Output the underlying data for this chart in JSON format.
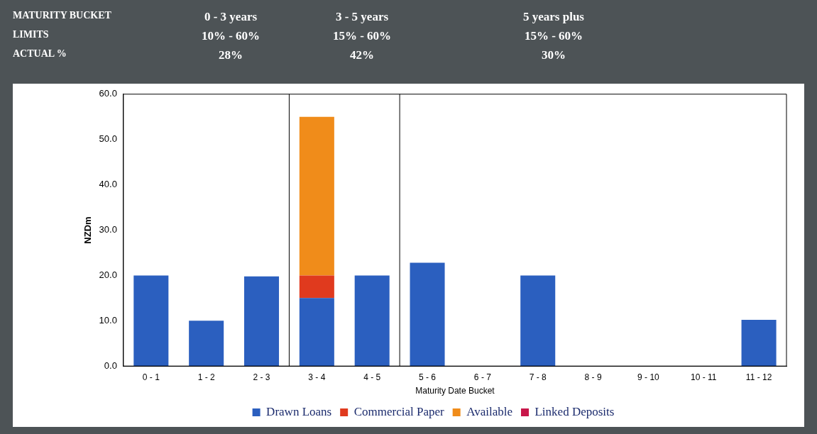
{
  "chart_data": {
    "type": "bar",
    "stacked": true,
    "xlabel": "Maturity Date Bucket",
    "ylabel": "NZDm",
    "categories": [
      "0 - 1",
      "1 - 2",
      "2 - 3",
      "3 - 4",
      "4 - 5",
      "5 - 6",
      "6 - 7",
      "7 - 8",
      "8 - 9",
      "9 - 10",
      "10 - 11",
      "11 - 12"
    ],
    "series": [
      {
        "name": "Drawn Loans",
        "color": "#2b5fbf",
        "values": [
          20.0,
          10.0,
          19.8,
          15.0,
          20.0,
          22.8,
          0,
          20.0,
          0,
          0,
          0,
          10.2
        ]
      },
      {
        "name": "Commercial Paper",
        "color": "#e03a1e",
        "values": [
          0,
          0,
          0,
          5.0,
          0,
          0,
          0,
          0,
          0,
          0,
          0,
          0
        ]
      },
      {
        "name": "Available",
        "color": "#f08c1a",
        "values": [
          0,
          0,
          0,
          35.0,
          0,
          0,
          0,
          0,
          0,
          0,
          0,
          0
        ]
      },
      {
        "name": "Linked Deposits",
        "color": "#c8174a",
        "values": [
          0,
          0,
          0,
          0,
          0,
          0,
          0,
          0,
          0,
          0,
          0,
          0
        ]
      }
    ],
    "ylim": [
      0,
      60
    ],
    "yticks": [
      {
        "value": 0,
        "label": "0.0"
      },
      {
        "value": 10,
        "label": "10.0"
      },
      {
        "value": 20,
        "label": "20.0"
      },
      {
        "value": 30,
        "label": "30.0"
      },
      {
        "value": 40,
        "label": "40.0"
      },
      {
        "value": 50,
        "label": "50.0"
      },
      {
        "value": 60,
        "label": "60.0"
      }
    ],
    "grid": false,
    "legend": "bottom",
    "annotations": [
      "MATURITY BUCKET",
      "0 - 3 years",
      "3 - 5 years",
      "5 years plus",
      "LIMITS",
      "10% - 60%",
      "15% - 60%",
      "15% - 60%",
      "ACTUAL %",
      "28%",
      "42%",
      "30%"
    ]
  }
}
